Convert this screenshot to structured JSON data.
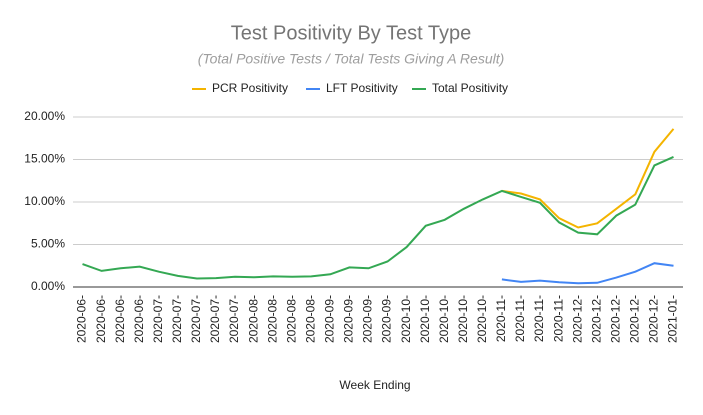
{
  "chart_data": {
    "type": "line",
    "title": "Test Positivity By Test Type",
    "subtitle": "(Total Positive Tests / Total Tests Giving A Result)",
    "x_label": "Week Ending",
    "categories": [
      "2020-06-",
      "2020-06-",
      "2020-06-",
      "2020-06-",
      "2020-07-",
      "2020-07-",
      "2020-07-",
      "2020-07-",
      "2020-07-",
      "2020-08-",
      "2020-08-",
      "2020-08-",
      "2020-08-",
      "2020-09-",
      "2020-09-",
      "2020-09-",
      "2020-09-",
      "2020-10-",
      "2020-10-",
      "2020-10-",
      "2020-10-",
      "2020-10-",
      "2020-11-",
      "2020-11-",
      "2020-11-",
      "2020-11-",
      "2020-12-",
      "2020-12-",
      "2020-12-",
      "2020-12-",
      "2020-12-",
      "2021-01-"
    ],
    "series": [
      {
        "name": "PCR Positivity",
        "color": "#f4b400",
        "values": [
          null,
          null,
          null,
          null,
          null,
          null,
          null,
          null,
          null,
          null,
          null,
          null,
          null,
          null,
          null,
          null,
          null,
          null,
          null,
          null,
          null,
          null,
          11.3,
          11.0,
          10.3,
          8.1,
          7.0,
          7.5,
          9.2,
          10.9,
          15.9,
          18.6
        ]
      },
      {
        "name": "LFT Positivity",
        "color": "#4285f4",
        "values": [
          null,
          null,
          null,
          null,
          null,
          null,
          null,
          null,
          null,
          null,
          null,
          null,
          null,
          null,
          null,
          null,
          null,
          null,
          null,
          null,
          null,
          null,
          0.9,
          0.6,
          0.75,
          0.55,
          0.45,
          0.5,
          1.1,
          1.8,
          2.8,
          2.5
        ]
      },
      {
        "name": "Total Positivity",
        "color": "#34a853",
        "values": [
          2.7,
          1.9,
          2.2,
          2.4,
          1.8,
          1.3,
          1.0,
          1.05,
          1.2,
          1.15,
          1.25,
          1.2,
          1.25,
          1.5,
          2.3,
          2.2,
          3.0,
          4.7,
          7.2,
          7.9,
          9.2,
          10.3,
          11.3,
          10.6,
          9.9,
          7.6,
          6.4,
          6.2,
          8.4,
          9.7,
          14.3,
          15.3
        ]
      }
    ],
    "ylim": [
      0,
      20
    ],
    "yticks": [
      {
        "value": 0,
        "label": "0.00%"
      },
      {
        "value": 5,
        "label": "5.00%"
      },
      {
        "value": 10,
        "label": "10.00%"
      },
      {
        "value": 15,
        "label": "15.00%"
      },
      {
        "value": 20,
        "label": "20.00%"
      }
    ],
    "grid": true,
    "legend": "top"
  }
}
